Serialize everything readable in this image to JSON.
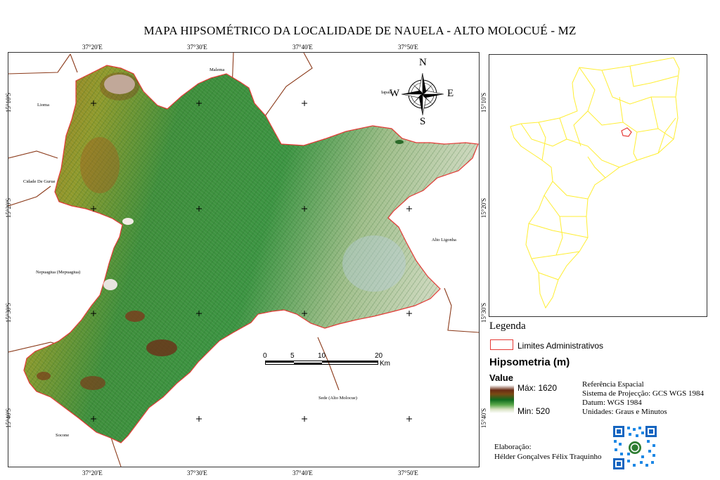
{
  "title": "MAPA HIPSOMÉTRICO DA LOCALIDADE DE NAUELA - ALTO MOLOCUÉ - MZ",
  "longitude_labels": [
    "37°20'E",
    "37°30'E",
    "37°40'E",
    "37°50'E"
  ],
  "latitude_labels": [
    "15°10'S",
    "15°20'S",
    "15°30'S",
    "15°40'S"
  ],
  "places": {
    "malema": "Malema",
    "lioma": "Lioma",
    "cidade_de_gurue": "Cidade De Gurue",
    "alto_ligonha": "Alto Ligonha",
    "nepuagiua": "Nepuagiua (Mepuagiua)",
    "sede": "Sede (Alto Molocue)",
    "socone": "Socone",
    "iapala": "Iapala"
  },
  "compass": {
    "n": "N",
    "s": "S",
    "e": "E",
    "w": "W"
  },
  "scale_bar": {
    "ticks": [
      "0",
      "5",
      "10",
      "20"
    ],
    "unit": "Km"
  },
  "legend": {
    "title": "Legenda",
    "admin_limits": "Limites Administrativos",
    "admin_color": "#e53935",
    "hypsometry_title": "Hipsometria (m)",
    "value_label": "Value",
    "max_label": "Máx: 1620",
    "min_label": "Min: 520"
  },
  "reference": {
    "heading": "Referência Espacial",
    "projection": "Sistema de Projecção: GCS WGS 1984",
    "datum": "Datum: WGS 1984",
    "units": "Unidades: Graus e Minutos"
  },
  "credit": {
    "label": "Elaboração:",
    "author": "Hélder Gonçalves Félix Traquinho"
  },
  "colors": {
    "inset_districts": "#ffee33",
    "boundary": "#e53935",
    "roads": "#8b3a1a",
    "relief_green": "#2f8f3a",
    "relief_brown": "#a86a1e",
    "relief_light": "#d8e2c2"
  }
}
